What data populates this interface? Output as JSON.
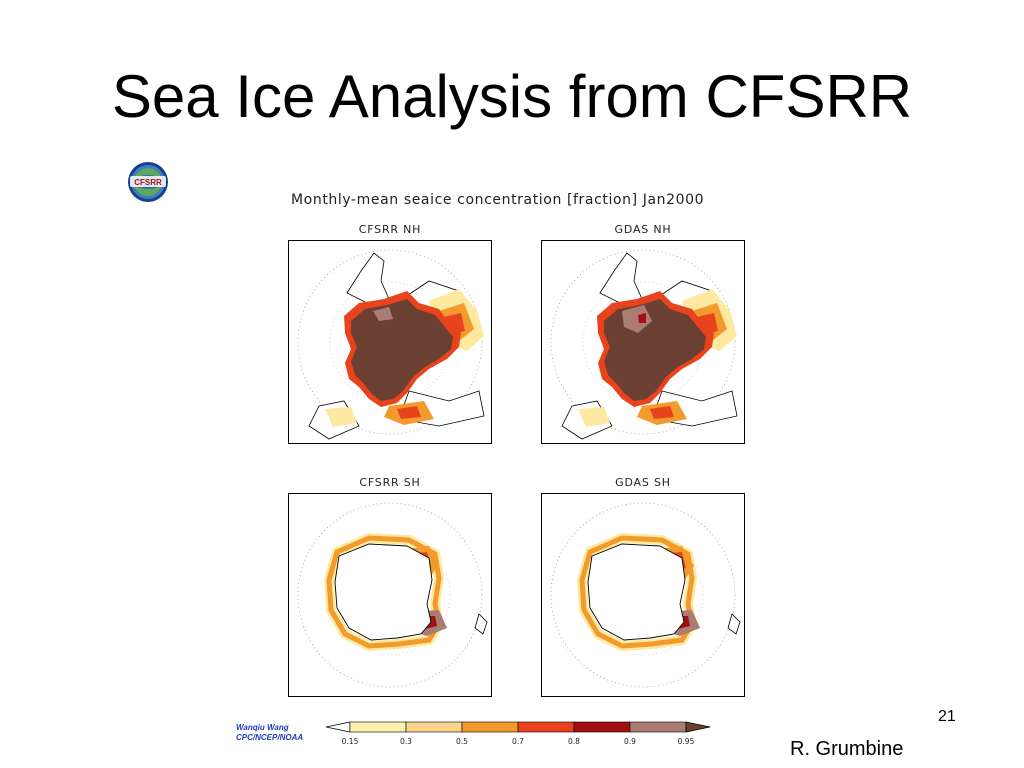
{
  "slide": {
    "title": "Sea Ice Analysis from CFSRR",
    "page_number": "21",
    "author": "R. Grumbine"
  },
  "logo": {
    "text": "CFSRR"
  },
  "figure": {
    "title": "Monthly-mean seaice concentration [fraction] Jan2000",
    "panels": [
      {
        "label": "CFSRR NH",
        "hemisphere": "north"
      },
      {
        "label": "GDAS NH",
        "hemisphere": "north"
      },
      {
        "label": "CFSRR SH",
        "hemisphere": "south"
      },
      {
        "label": "GDAS SH",
        "hemisphere": "south"
      }
    ],
    "credit": {
      "line1": "Wanqiu Wang",
      "line2": "CPC/NCEP/NOAA"
    },
    "colorbar": {
      "ticks": [
        "0.15",
        "0.3",
        "0.5",
        "0.7",
        "0.8",
        "0.9",
        "0.95"
      ],
      "colors": [
        "#ffffff",
        "#fdf1b0",
        "#f9d48a",
        "#f29b2c",
        "#e8431c",
        "#a50f0f",
        "#a97d72",
        "#6b3f32"
      ]
    }
  },
  "colors": {
    "ice_full": "#6b3f32",
    "ice_high": "#a50f0f",
    "ice_mid": "#e8431c",
    "ice_low": "#f29b2c",
    "ice_edge": "#fdf1b0"
  }
}
